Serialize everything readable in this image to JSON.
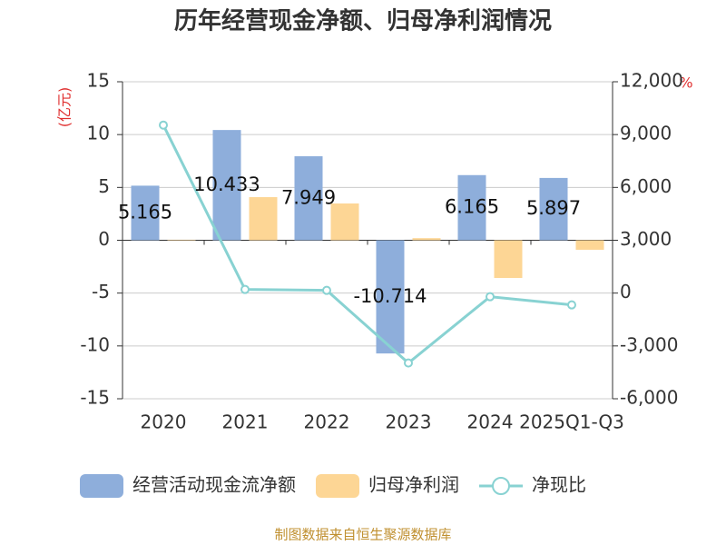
{
  "chart_data": {
    "type": "bar_line",
    "title": "历年经营现金净额、归母净利润情况",
    "y_label": "(亿元)",
    "y2_label": "%",
    "source": "制图数据来自恒生聚源数据库",
    "categories": [
      "2020",
      "2021",
      "2022",
      "2023",
      "2024",
      "2025Q1-Q3"
    ],
    "series": [
      {
        "name": "经营活动现金流净额",
        "type": "bar",
        "color": "#8eaedb",
        "values": [
          5.165,
          10.433,
          7.949,
          -10.714,
          6.165,
          5.897
        ],
        "labels": true
      },
      {
        "name": "归母净利润",
        "type": "bar",
        "color": "#fdd695",
        "values": [
          0.05,
          4.08,
          3.48,
          0.2,
          -3.57,
          -0.9
        ]
      },
      {
        "name": "净现比",
        "type": "line",
        "axis": "y2",
        "color": "#88d2d2",
        "values": [
          9540,
          206,
          155,
          -3970,
          -206,
          -670
        ]
      }
    ],
    "ylim": [
      -15,
      15
    ],
    "yticks": [
      -15,
      -10,
      -5,
      0,
      5,
      10,
      15
    ],
    "y2lim": [
      -6000,
      12000
    ],
    "y2ticks": [
      {
        "value": -6000,
        "label": "-6,000"
      },
      {
        "value": -3000,
        "label": "-3,000"
      },
      0,
      {
        "value": 3000,
        "label": "3,000"
      },
      {
        "value": 6000,
        "label": "6,000"
      },
      {
        "value": 9000,
        "label": "9,000"
      },
      {
        "value": 12000,
        "label": "12,000"
      }
    ],
    "grid": true
  }
}
